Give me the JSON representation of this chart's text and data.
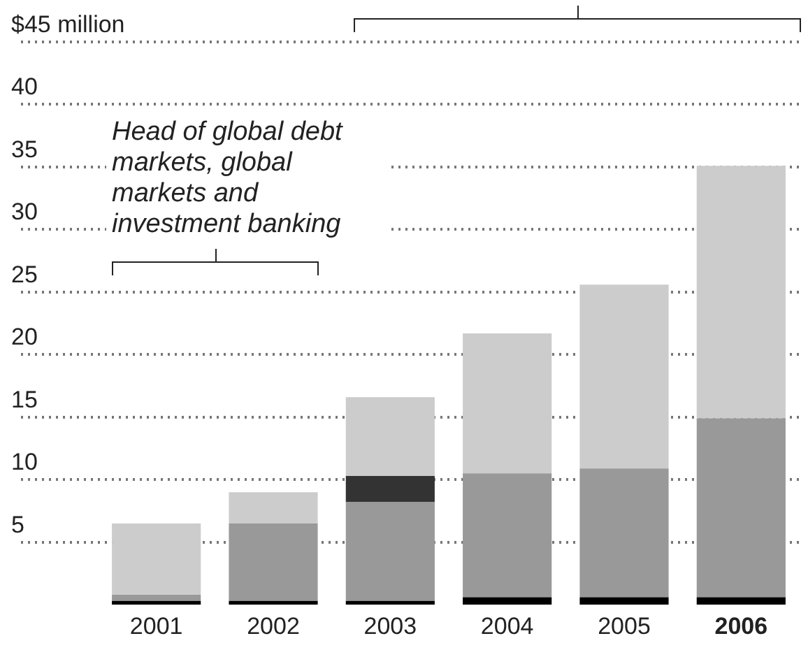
{
  "chart_data": {
    "type": "bar",
    "stacked": true,
    "categories": [
      "2001",
      "2002",
      "2003",
      "2004",
      "2005",
      "2006"
    ],
    "series": [
      {
        "color": "#000000",
        "values": [
          0.3,
          0.3,
          0.3,
          0.6,
          0.6,
          0.6
        ]
      },
      {
        "color": "#999999",
        "values": [
          0.5,
          6.2,
          7.9,
          9.9,
          10.3,
          14.3
        ]
      },
      {
        "color": "#333333",
        "values": [
          null,
          null,
          2.1,
          null,
          null,
          null
        ]
      },
      {
        "color": "#cccccc",
        "values": [
          5.7,
          2.5,
          6.3,
          11.2,
          14.7,
          20.2
        ]
      }
    ],
    "ylim": [
      0,
      45
    ],
    "yticks": [
      5,
      10,
      15,
      20,
      25,
      30,
      35,
      40,
      {
        "value": 45,
        "label": "$45 million"
      }
    ],
    "grid": "y",
    "annotations": [
      "Head of global debt markets, global markets and investment banking"
    ]
  }
}
